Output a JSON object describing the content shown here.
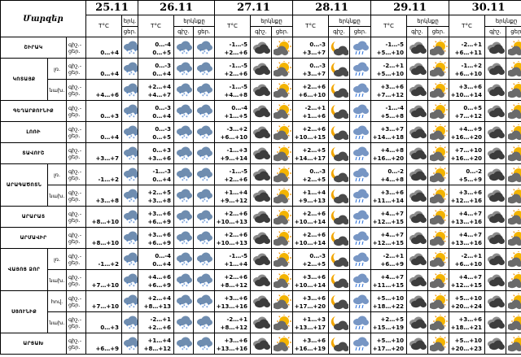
{
  "header": {
    "marz_label": "Մարզեր",
    "temp_label": "T°C",
    "sky_label": "երկնքը",
    "sky_label_short": "երկ.",
    "day_night": "գիշ.",
    "day_night_2": "ցեր."
  },
  "dates": [
    "25.11",
    "26.11",
    "27.11",
    "28.11",
    "29.11",
    "30.11"
  ],
  "dn_label": "գիշ.-\nցեր.",
  "zone_labels": {
    "low": "լռ.",
    "foot": "նախ.",
    "hol": "հով."
  },
  "regions": [
    {
      "name": "ՇԻՐԱԿ",
      "rows": [
        {
          "zone": "",
          "cells": [
            {
              "n": "",
              "d": "0…+4",
              "i1": "snow",
              "i2": "snow"
            },
            {
              "n": "0…-4",
              "d": "0…+5",
              "i1": "snow",
              "i2": "snow"
            },
            {
              "n": "-1…-5",
              "d": "+2…+6",
              "i1": "dark",
              "i2": "suncloud"
            },
            {
              "n": "0…-3",
              "d": "+3…+7",
              "i1": "mooncloud",
              "i2": "raincloud"
            },
            {
              "n": "-1…-5",
              "d": "+5…+10",
              "i1": "dark",
              "i2": "suncloud"
            },
            {
              "n": "-2…+1",
              "d": "+6…+11",
              "i1": "dark",
              "i2": "suncloud"
            }
          ]
        }
      ]
    },
    {
      "name": "ԿՈՏԱՅՔ",
      "rows": [
        {
          "zone": "low",
          "cells": [
            {
              "n": "",
              "d": "0…+4",
              "i1": "snow",
              "i2": "snow"
            },
            {
              "n": "0…-3",
              "d": "0…+4",
              "i1": "snow",
              "i2": "snow"
            },
            {
              "n": "-1…-5",
              "d": "+2…+6",
              "i1": "dark",
              "i2": "suncloud"
            },
            {
              "n": "0…-3",
              "d": "+3…+7",
              "i1": "mooncloud",
              "i2": "raincloud"
            },
            {
              "n": "-2…+1",
              "d": "+5…+10",
              "i1": "dark",
              "i2": "suncloud"
            },
            {
              "n": "-1…+2",
              "d": "+6…+10",
              "i1": "dark",
              "i2": "suncloud"
            }
          ]
        },
        {
          "zone": "foot",
          "cells": [
            {
              "n": "",
              "d": "+4…+6",
              "i1": "snow",
              "i2": "snow"
            },
            {
              "n": "+2…+4",
              "d": "+4…+7",
              "i1": "snow",
              "i2": "snow"
            },
            {
              "n": "-1…-5",
              "d": "+4…+8",
              "i1": "dark",
              "i2": "suncloud"
            },
            {
              "n": "+2…+6",
              "d": "+6…+10",
              "i1": "mooncloud",
              "i2": "raincloud"
            },
            {
              "n": "+3…+6",
              "d": "+7…+12",
              "i1": "dark",
              "i2": "suncloud"
            },
            {
              "n": "+3…+6",
              "d": "+10…+14",
              "i1": "dark",
              "i2": "suncloud"
            }
          ]
        }
      ]
    },
    {
      "name": "ԳԵՂԱՐՔՈՒՆԻՔ",
      "rows": [
        {
          "zone": "",
          "cells": [
            {
              "n": "",
              "d": "0…+3",
              "i1": "snow",
              "i2": "snow"
            },
            {
              "n": "0…-3",
              "d": "0…+4",
              "i1": "snow",
              "i2": "snow"
            },
            {
              "n": "0…-4",
              "d": "+1…+5",
              "i1": "dark",
              "i2": "suncloud"
            },
            {
              "n": "-2…+1",
              "d": "+1…+6",
              "i1": "mooncloud",
              "i2": "raincloud"
            },
            {
              "n": "-1…-4",
              "d": "+5…+8",
              "i1": "dark",
              "i2": "suncloud"
            },
            {
              "n": "0…+5",
              "d": "+7…+12",
              "i1": "dark",
              "i2": "suncloud"
            }
          ]
        }
      ]
    },
    {
      "name": "ԼՈՌԻ",
      "rows": [
        {
          "zone": "",
          "cells": [
            {
              "n": "",
              "d": "0…+4",
              "i1": "snow",
              "i2": "snow"
            },
            {
              "n": "0…-3",
              "d": "0…+5",
              "i1": "snow",
              "i2": "snow"
            },
            {
              "n": "-3…+2",
              "d": "+6…+10",
              "i1": "dark",
              "i2": "suncloud"
            },
            {
              "n": "+2…+6",
              "d": "+10…+15",
              "i1": "mooncloud",
              "i2": "raincloud"
            },
            {
              "n": "+3…+7",
              "d": "+14…+18",
              "i1": "dark",
              "i2": "suncloud"
            },
            {
              "n": "+4…+9",
              "d": "+16…+20",
              "i1": "dark",
              "i2": "suncloud"
            }
          ]
        }
      ]
    },
    {
      "name": "ՏԱՎՈՒՇ",
      "rows": [
        {
          "zone": "",
          "cells": [
            {
              "n": "",
              "d": "+3…+7",
              "i1": "snow",
              "i2": "snow"
            },
            {
              "n": "0…+3",
              "d": "+3…+6",
              "i1": "snow",
              "i2": "snow"
            },
            {
              "n": "-1…+3",
              "d": "+9…+14",
              "i1": "dark",
              "i2": "suncloud"
            },
            {
              "n": "+2…+5",
              "d": "+14…+17",
              "i1": "mooncloud",
              "i2": "raincloud"
            },
            {
              "n": "+4…+8",
              "d": "+16…+20",
              "i1": "dark",
              "i2": "suncloud"
            },
            {
              "n": "+7…+10",
              "d": "+16…+20",
              "i1": "dark",
              "i2": "suncloud"
            }
          ]
        }
      ]
    },
    {
      "name": "ԱՐԱԳԱԾՈՏՆ",
      "rows": [
        {
          "zone": "low",
          "cells": [
            {
              "n": "",
              "d": "-1…+2",
              "i1": "snow",
              "i2": "snow"
            },
            {
              "n": "-1…-3",
              "d": "0…+4",
              "i1": "snow",
              "i2": "snow"
            },
            {
              "n": "-1…-5",
              "d": "+2…+6",
              "i1": "dark",
              "i2": "suncloud"
            },
            {
              "n": "0…-3",
              "d": "+2…+5",
              "i1": "mooncloud",
              "i2": "raincloud"
            },
            {
              "n": "0…-2",
              "d": "+4…+8",
              "i1": "dark",
              "i2": "suncloud"
            },
            {
              "n": "0…-2",
              "d": "+5…+9",
              "i1": "dark",
              "i2": "suncloud"
            }
          ]
        },
        {
          "zone": "foot",
          "cells": [
            {
              "n": "",
              "d": "+3…+8",
              "i1": "snow",
              "i2": "snow"
            },
            {
              "n": "+2…+5",
              "d": "+3…+8",
              "i1": "snow",
              "i2": "snow"
            },
            {
              "n": "+1…+4",
              "d": "+9…+12",
              "i1": "dark",
              "i2": "suncloud"
            },
            {
              "n": "+1…+4",
              "d": "+9…+13",
              "i1": "mooncloud",
              "i2": "raincloud"
            },
            {
              "n": "+3…+6",
              "d": "+11…+14",
              "i1": "dark",
              "i2": "suncloud"
            },
            {
              "n": "+3…+6",
              "d": "+12…+16",
              "i1": "dark",
              "i2": "suncloud"
            }
          ]
        }
      ]
    },
    {
      "name": "ԱՐԱՐԱՏ",
      "rows": [
        {
          "zone": "",
          "cells": [
            {
              "n": "",
              "d": "+8…+10",
              "i1": "snow",
              "i2": "snow"
            },
            {
              "n": "+3…+6",
              "d": "+6…+9",
              "i1": "snow",
              "i2": "snow"
            },
            {
              "n": "+2…+6",
              "d": "+10…+13",
              "i1": "dark",
              "i2": "suncloud"
            },
            {
              "n": "+2…+6",
              "d": "+10…+14",
              "i1": "mooncloud",
              "i2": "raincloud"
            },
            {
              "n": "+4…+7",
              "d": "+12…+15",
              "i1": "dark",
              "i2": "suncloud"
            },
            {
              "n": "+4…+7",
              "d": "+13…+16",
              "i1": "dark",
              "i2": "suncloud"
            }
          ]
        }
      ]
    },
    {
      "name": "ԱՐՄԱՎԻՐ",
      "rows": [
        {
          "zone": "",
          "cells": [
            {
              "n": "",
              "d": "+8…+10",
              "i1": "snow",
              "i2": "snow"
            },
            {
              "n": "+3…+6",
              "d": "+6…+9",
              "i1": "snow",
              "i2": "snow"
            },
            {
              "n": "+2…+6",
              "d": "+10…+13",
              "i1": "dark",
              "i2": "suncloud"
            },
            {
              "n": "+2…+6",
              "d": "+10…+14",
              "i1": "mooncloud",
              "i2": "raincloud"
            },
            {
              "n": "+4…+7",
              "d": "+12…+15",
              "i1": "dark",
              "i2": "suncloud"
            },
            {
              "n": "+4…+7",
              "d": "+13…+16",
              "i1": "dark",
              "i2": "suncloud"
            }
          ]
        }
      ]
    },
    {
      "name": "ՎԱՅՈՑ ՁՈՐ",
      "rows": [
        {
          "zone": "low",
          "cells": [
            {
              "n": "",
              "d": "-1…+2",
              "i1": "snow",
              "i2": "snow"
            },
            {
              "n": "0…-4",
              "d": "0…+4",
              "i1": "snow",
              "i2": "snow"
            },
            {
              "n": "-1…-5",
              "d": "+1…+4",
              "i1": "dark",
              "i2": "suncloud"
            },
            {
              "n": "0…-3",
              "d": "+2…+5",
              "i1": "mooncloud",
              "i2": "raincloud"
            },
            {
              "n": "-2…+1",
              "d": "+6…+9",
              "i1": "dark",
              "i2": "suncloud"
            },
            {
              "n": "-2…+1",
              "d": "+6…+10",
              "i1": "dark",
              "i2": "suncloud"
            }
          ]
        },
        {
          "zone": "foot",
          "cells": [
            {
              "n": "",
              "d": "+7…+10",
              "i1": "snow",
              "i2": "snow"
            },
            {
              "n": "+4…+6",
              "d": "+6…+9",
              "i1": "snow",
              "i2": "snow"
            },
            {
              "n": "+2…+6",
              "d": "+8…+12",
              "i1": "dark",
              "i2": "suncloud"
            },
            {
              "n": "+3…+6",
              "d": "+10…+14",
              "i1": "mooncloud",
              "i2": "raincloud"
            },
            {
              "n": "+4…+7",
              "d": "+11…+15",
              "i1": "dark",
              "i2": "suncloud"
            },
            {
              "n": "+4…+7",
              "d": "+12…+15",
              "i1": "dark",
              "i2": "suncloud"
            }
          ]
        }
      ]
    },
    {
      "name": "ՍՅՈՒՆԻՔ",
      "rows": [
        {
          "zone": "hol",
          "cells": [
            {
              "n": "",
              "d": "+7…+10",
              "i1": "snow",
              "i2": "snow"
            },
            {
              "n": "+2…+4",
              "d": "+8…+13",
              "i1": "snow",
              "i2": "snow"
            },
            {
              "n": "+3…+6",
              "d": "+13…+16",
              "i1": "dark",
              "i2": "suncloud"
            },
            {
              "n": "+3…+6",
              "d": "+17…+20",
              "i1": "mooncloud",
              "i2": "raincloud"
            },
            {
              "n": "+5…+10",
              "d": "+18…+22",
              "i1": "dark",
              "i2": "suncloud"
            },
            {
              "n": "+5…+10",
              "d": "+20…+24",
              "i1": "dark",
              "i2": "suncloud"
            }
          ]
        },
        {
          "zone": "foot",
          "cells": [
            {
              "n": "",
              "d": "0…+3",
              "i1": "snow",
              "i2": "snow"
            },
            {
              "n": "-2…+1",
              "d": "+2…+6",
              "i1": "snow",
              "i2": "snow"
            },
            {
              "n": "-2…+1",
              "d": "+8…+12",
              "i1": "dark",
              "i2": "suncloud"
            },
            {
              "n": "+1…+3",
              "d": "+13…+17",
              "i1": "mooncloud",
              "i2": "raincloud"
            },
            {
              "n": "+2…+5",
              "d": "+15…+19",
              "i1": "dark",
              "i2": "suncloud"
            },
            {
              "n": "+3…+6",
              "d": "+18…+21",
              "i1": "dark",
              "i2": "suncloud"
            }
          ]
        }
      ]
    },
    {
      "name": "ԱՐՑԱԽ",
      "rows": [
        {
          "zone": "",
          "cells": [
            {
              "n": "",
              "d": "+6…+9",
              "i1": "snow",
              "i2": "snow"
            },
            {
              "n": "+1…+4",
              "d": "+8…+12",
              "i1": "snow",
              "i2": "snow"
            },
            {
              "n": "+3…+6",
              "d": "+13…+16",
              "i1": "dark",
              "i2": "suncloud"
            },
            {
              "n": "+3…+6",
              "d": "+16…+19",
              "i1": "mooncloud",
              "i2": "raincloud"
            },
            {
              "n": "+5…+10",
              "d": "+17…+20",
              "i1": "dark",
              "i2": "suncloud"
            },
            {
              "n": "+5…+10",
              "d": "+20…+23",
              "i1": "dark",
              "i2": "suncloud"
            }
          ]
        }
      ]
    }
  ]
}
